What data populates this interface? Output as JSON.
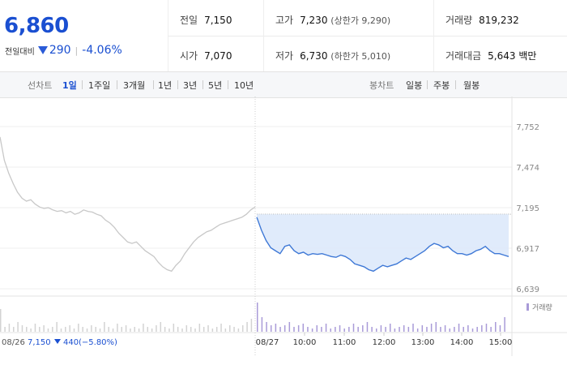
{
  "price": {
    "current": "6,860",
    "diff_label": "전일대비",
    "diff_value": "290",
    "diff_sep": "|",
    "diff_pct": "-4.06%"
  },
  "info": {
    "prev_close_label": "전일",
    "prev_close": "7,150",
    "high_label": "고가",
    "high": "7,230",
    "upper_limit": "(상한가 9,290)",
    "volume_label": "거래량",
    "volume": "819,232",
    "open_label": "시가",
    "open": "7,070",
    "low_label": "저가",
    "low": "6,730",
    "lower_limit": "(하한가 5,010)",
    "value_label": "거래대금",
    "value": "5,643 백만"
  },
  "tabs": {
    "line_header": "선차트",
    "line_tabs": [
      "1일",
      "1주일",
      "3개월",
      "1년",
      "3년",
      "5년",
      "10년"
    ],
    "candle_header": "봉차트",
    "candle_tabs": [
      "일봉",
      "주봉",
      "월봉"
    ]
  },
  "footer": {
    "prev_date": "08/26",
    "prev_price": "7,150",
    "prev_change": "440",
    "prev_pct": "(−5.80%)"
  },
  "chart_data": {
    "type": "line",
    "y_ticks": [
      "7,752",
      "7,474",
      "7,195",
      "6,917",
      "6,639"
    ],
    "ylim": [
      6639,
      7752
    ],
    "reference_price": 7150,
    "volume_legend": "거래량",
    "x_labels": [
      "08/27",
      "10:00",
      "11:00",
      "12:00",
      "13:00",
      "14:00",
      "15:00"
    ],
    "series": [
      {
        "day": "08/26",
        "style": "gray",
        "values": [
          7680,
          7520,
          7430,
          7360,
          7300,
          7260,
          7240,
          7250,
          7220,
          7200,
          7190,
          7195,
          7180,
          7170,
          7175,
          7160,
          7170,
          7150,
          7160,
          7180,
          7170,
          7165,
          7150,
          7140,
          7110,
          7090,
          7060,
          7020,
          6990,
          6960,
          6950,
          6960,
          6930,
          6900,
          6880,
          6860,
          6820,
          6790,
          6770,
          6760,
          6800,
          6830,
          6880,
          6920,
          6960,
          6990,
          7010,
          7030,
          7040,
          7060,
          7080,
          7090,
          7100,
          7110,
          7120,
          7130,
          7150,
          7180,
          7200
        ]
      },
      {
        "day": "08/27",
        "style": "blue",
        "values": [
          7130,
          7040,
          6970,
          6920,
          6900,
          6880,
          6930,
          6940,
          6900,
          6880,
          6890,
          6870,
          6880,
          6875,
          6880,
          6870,
          6860,
          6855,
          6870,
          6860,
          6840,
          6810,
          6800,
          6790,
          6770,
          6760,
          6780,
          6800,
          6790,
          6800,
          6810,
          6830,
          6850,
          6840,
          6860,
          6880,
          6900,
          6930,
          6950,
          6940,
          6920,
          6930,
          6900,
          6880,
          6880,
          6870,
          6880,
          6900,
          6910,
          6930,
          6900,
          6880,
          6880,
          6870,
          6860
        ]
      }
    ],
    "volume": {
      "day1": [
        14,
        3,
        5,
        3,
        6,
        4,
        3,
        2,
        5,
        3,
        4,
        2,
        3,
        6,
        2,
        3,
        4,
        2,
        5,
        3,
        2,
        4,
        3,
        2,
        6,
        3,
        2,
        5,
        3,
        4,
        2,
        3,
        2,
        5,
        3,
        2,
        4,
        6,
        3,
        2,
        5,
        3,
        2,
        4,
        3,
        2,
        5,
        3,
        4,
        2,
        3,
        5,
        2,
        4,
        3,
        2,
        4,
        6,
        8
      ],
      "day2": [
        18,
        9,
        6,
        4,
        5,
        3,
        4,
        6,
        3,
        4,
        5,
        3,
        2,
        4,
        3,
        5,
        2,
        3,
        4,
        2,
        3,
        5,
        3,
        4,
        6,
        3,
        2,
        4,
        3,
        5,
        2,
        3,
        4,
        3,
        5,
        2,
        4,
        3,
        5,
        6,
        3,
        4,
        2,
        3,
        5,
        3,
        4,
        2,
        3,
        4,
        5,
        3,
        6,
        4,
        9
      ]
    }
  }
}
